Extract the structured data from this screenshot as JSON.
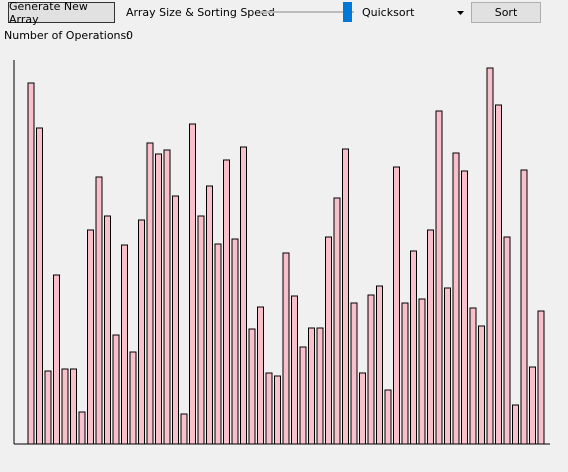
{
  "controls": {
    "generate_button": "Generate New Array",
    "slider_label": "Array Size & Sorting Speed",
    "algorithm": "Quicksort",
    "sort_button": "Sort",
    "operations_label": "Number of Operations:",
    "operations_count": "0"
  },
  "array": {
    "values": [
      361,
      316,
      73,
      169,
      75,
      75,
      32,
      214,
      267,
      228,
      109,
      199,
      92,
      224,
      301,
      290,
      294,
      248,
      30,
      320,
      228,
      258,
      200,
      284,
      205,
      297,
      115,
      137,
      71,
      68,
      191,
      148,
      97,
      116,
      116,
      207,
      246,
      295,
      141,
      71,
      149,
      158,
      54,
      277,
      141,
      193,
      145,
      214,
      333,
      156,
      291,
      273,
      136,
      118,
      376,
      339,
      207,
      39,
      274,
      77,
      133
    ]
  }
}
